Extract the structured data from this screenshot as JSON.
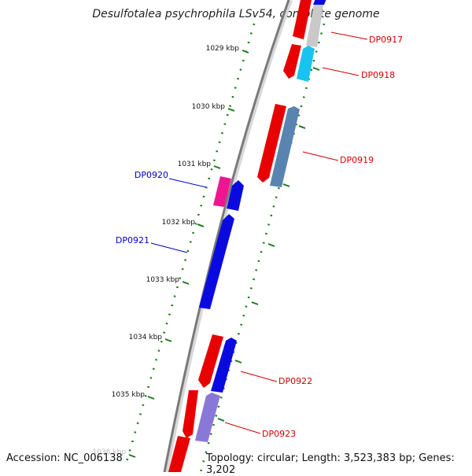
{
  "title": "Desulfotalea psychrophila LSv54, complete genome",
  "footer": {
    "accession": "Accession: NC_006138",
    "topology": "Topology: circular; Length: 3,523,383 bp; Genes: 3,202"
  },
  "ticks": [
    {
      "label": "1029 kbp"
    },
    {
      "label": "1030 kbp"
    },
    {
      "label": "1031 kbp"
    },
    {
      "label": "1032 kbp"
    },
    {
      "label": "1033 kbp"
    },
    {
      "label": "1034 kbp"
    },
    {
      "label": "1035 kbp"
    },
    {
      "label": "1036 kbp"
    }
  ],
  "gene_labels": [
    {
      "text": "DP0917",
      "color": "#d10000"
    },
    {
      "text": "DP0918",
      "color": "#d10000"
    },
    {
      "text": "DP0919",
      "color": "#d10000"
    },
    {
      "text": "DP0920",
      "color": "#0000c8"
    },
    {
      "text": "DP0921",
      "color": "#0000c8"
    },
    {
      "text": "DP0922",
      "color": "#d10000"
    },
    {
      "text": "DP0923",
      "color": "#d10000"
    }
  ],
  "colors": {
    "backbone": "#8a8a8a",
    "tick": "#1a7a1a",
    "forward_red": "#e80000",
    "reverse_blue": "#0a0ae0",
    "gray": "#c9c9c9",
    "cyan": "#19c3f0",
    "steelblue": "#5a84b0",
    "pink": "#ee1590",
    "lavender": "#8a78d8"
  }
}
